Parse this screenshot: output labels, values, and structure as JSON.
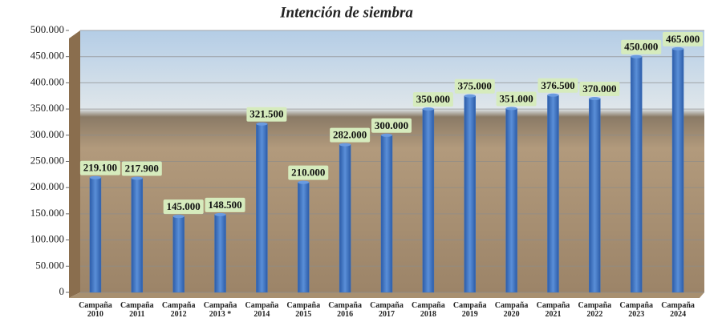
{
  "chart_data": {
    "type": "bar",
    "title": "Intención de siembra",
    "categories": [
      "Campaña 2010",
      "Campaña 2011",
      "Campaña 2012",
      "Campaña 2013 *",
      "Campaña 2014",
      "Campaña 2015",
      "Campaña 2016",
      "Campaña 2017",
      "Campaña 2018",
      "Campaña 2019",
      "Campaña 2020",
      "Campaña 2021",
      "Campaña 2022",
      "Campaña 2023",
      "Campaña 2024"
    ],
    "values": [
      219100,
      217900,
      145000,
      148500,
      321500,
      210000,
      282000,
      300000,
      350000,
      375000,
      351000,
      376500,
      370000,
      450000,
      465000
    ],
    "value_labels": [
      "219.100",
      "217.900",
      "145.000",
      "148.500",
      "321.500",
      "210.000",
      "282.000",
      "300.000",
      "350.000",
      "375.000",
      "351.000",
      "376.500",
      "370.000",
      "450.000",
      "465.000"
    ],
    "color": "#3f73c0",
    "ylim": [
      0,
      500000
    ],
    "yticks": [
      0,
      {
        "value": 50000,
        "label": "50.000"
      },
      {
        "value": 100000,
        "label": "100.000"
      },
      {
        "value": 150000,
        "label": "150.000"
      },
      {
        "value": 200000,
        "label": "200.000"
      },
      {
        "value": 250000,
        "label": "250.000"
      },
      {
        "value": 300000,
        "label": "300.000"
      },
      {
        "value": 350000,
        "label": "350.000"
      },
      {
        "value": 400000,
        "label": "400.000"
      },
      {
        "value": 450000,
        "label": "450.000"
      },
      {
        "value": 500000,
        "label": "500.000"
      }
    ],
    "grid": true
  }
}
